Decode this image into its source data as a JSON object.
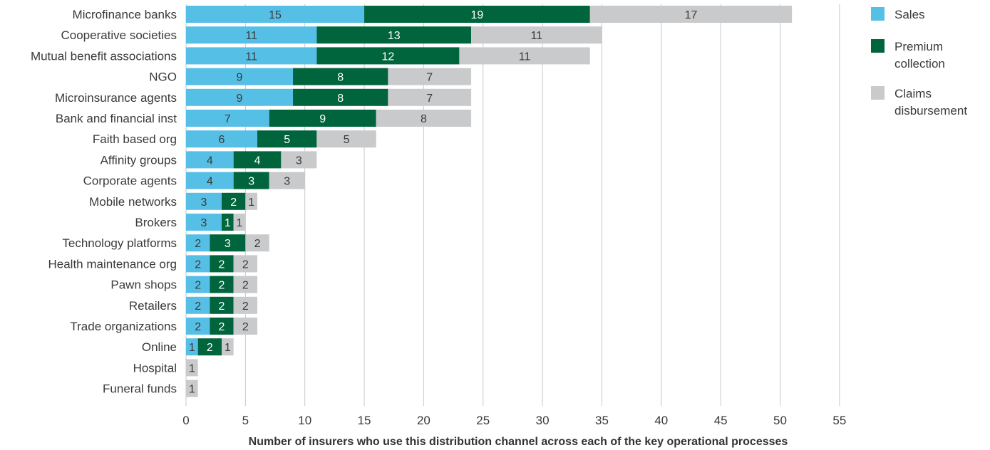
{
  "chart_data": {
    "type": "bar",
    "orientation": "horizontal",
    "stacked": true,
    "title": "",
    "xlabel": "Number of insurers who use this distribution channel across each of the key operational processes",
    "ylabel": "",
    "xlim": [
      0,
      55
    ],
    "xticks": [
      0,
      5,
      10,
      15,
      20,
      25,
      30,
      35,
      40,
      45,
      50,
      55
    ],
    "grid": "vertical gridlines",
    "legend_position": "right",
    "categories": [
      "Microfinance banks",
      "Cooperative societies",
      "Mutual benefit associations",
      "NGO",
      "Microinsurance agents",
      "Bank and financial inst",
      "Faith based org",
      "Affinity groups",
      "Corporate agents",
      "Mobile networks",
      "Brokers",
      "Technology platforms",
      "Health maintenance org",
      "Pawn shops",
      "Retailers",
      "Trade organizations",
      "Online",
      "Hospital",
      "Funeral funds"
    ],
    "series": [
      {
        "name": "Sales",
        "color": "#56bfe6",
        "label_color": "#3a3a3a",
        "values": [
          15,
          11,
          11,
          9,
          9,
          7,
          6,
          4,
          4,
          3,
          3,
          2,
          2,
          2,
          2,
          2,
          1,
          0,
          0
        ]
      },
      {
        "name": "Premium collection",
        "legend_lines": [
          "Premium",
          "collection"
        ],
        "color": "#00643c",
        "label_color": "#ffffff",
        "values": [
          19,
          13,
          12,
          8,
          8,
          9,
          5,
          4,
          3,
          2,
          1,
          3,
          2,
          2,
          2,
          2,
          2,
          0,
          0
        ]
      },
      {
        "name": "Claims disbursement",
        "legend_lines": [
          "Claims",
          "disbursement"
        ],
        "color": "#c9cacc",
        "label_color": "#3a3a3a",
        "values": [
          17,
          11,
          11,
          7,
          7,
          8,
          5,
          3,
          3,
          1,
          1,
          2,
          2,
          2,
          2,
          2,
          1,
          1,
          1
        ]
      }
    ]
  }
}
